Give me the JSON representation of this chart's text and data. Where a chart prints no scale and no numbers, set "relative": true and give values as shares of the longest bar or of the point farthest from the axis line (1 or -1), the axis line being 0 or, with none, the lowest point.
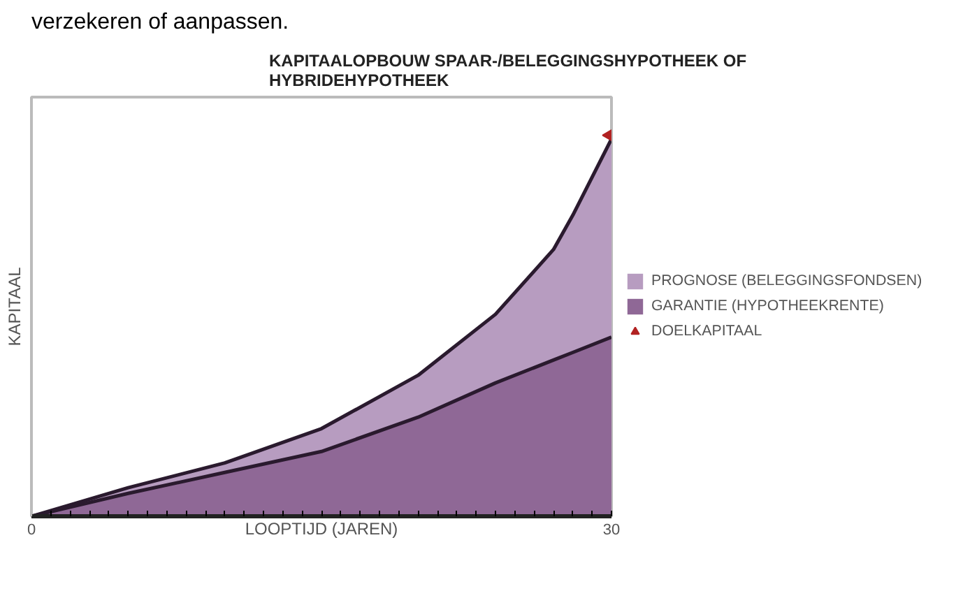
{
  "chart_data": {
    "type": "area",
    "title": "KAPITAALOPBOUW SPAAR-/BELEGGINGSHYPOTHEEK OF HYBRIDEHYPOTHEEK",
    "annotations": [
      "verzekeren of aanpassen."
    ],
    "xlabel": "LOOPTIJD (JAREN)",
    "ylabel": "KAPITAAL",
    "relative": true,
    "xlim": [
      0,
      30
    ],
    "xticks": [
      0,
      {
        "value": 1,
        "label": null
      },
      {
        "value": 2,
        "label": null
      },
      {
        "value": 3,
        "label": null
      },
      {
        "value": 4,
        "label": null
      },
      {
        "value": 5,
        "label": null
      },
      {
        "value": 6,
        "label": null
      },
      {
        "value": 7,
        "label": null
      },
      {
        "value": 8,
        "label": null
      },
      {
        "value": 9,
        "label": null
      },
      {
        "value": 10,
        "label": null
      },
      {
        "value": 11,
        "label": null
      },
      {
        "value": 12,
        "label": null
      },
      {
        "value": 13,
        "label": null
      },
      {
        "value": 14,
        "label": null
      },
      {
        "value": 15,
        "label": null
      },
      {
        "value": 16,
        "label": null
      },
      {
        "value": 17,
        "label": null
      },
      {
        "value": 18,
        "label": null
      },
      {
        "value": 19,
        "label": null
      },
      {
        "value": 20,
        "label": null
      },
      {
        "value": 21,
        "label": null
      },
      {
        "value": 22,
        "label": null
      },
      {
        "value": 23,
        "label": null
      },
      {
        "value": 24,
        "label": null
      },
      {
        "value": 25,
        "label": null
      },
      {
        "value": 26,
        "label": null
      },
      {
        "value": 27,
        "label": null
      },
      {
        "value": 28,
        "label": null
      },
      {
        "value": 29,
        "label": null
      },
      30
    ],
    "x": [
      0,
      5,
      10,
      15,
      20,
      24,
      27,
      28,
      30
    ],
    "series": [
      {
        "name": "PROGNOSE (BELEGGINGSFONDSEN)",
        "color": "#b79cc0",
        "values": [
          0,
          0.075,
          0.14,
          0.23,
          0.37,
          0.53,
          0.7,
          0.79,
          0.99
        ]
      },
      {
        "name": "GARANTIE (HYPOTHEEKRENTE)",
        "color": "#8f6896",
        "values": [
          0,
          0.06,
          0.115,
          0.17,
          0.26,
          0.35,
          0.41,
          0.43,
          0.47
        ]
      },
      {
        "name": "DOELKAPITAAL",
        "type": "scatter",
        "marker": "triangle",
        "color": "#b22222",
        "x": [
          30
        ],
        "values": [
          1
        ]
      }
    ],
    "grid": false,
    "legend": "right"
  }
}
